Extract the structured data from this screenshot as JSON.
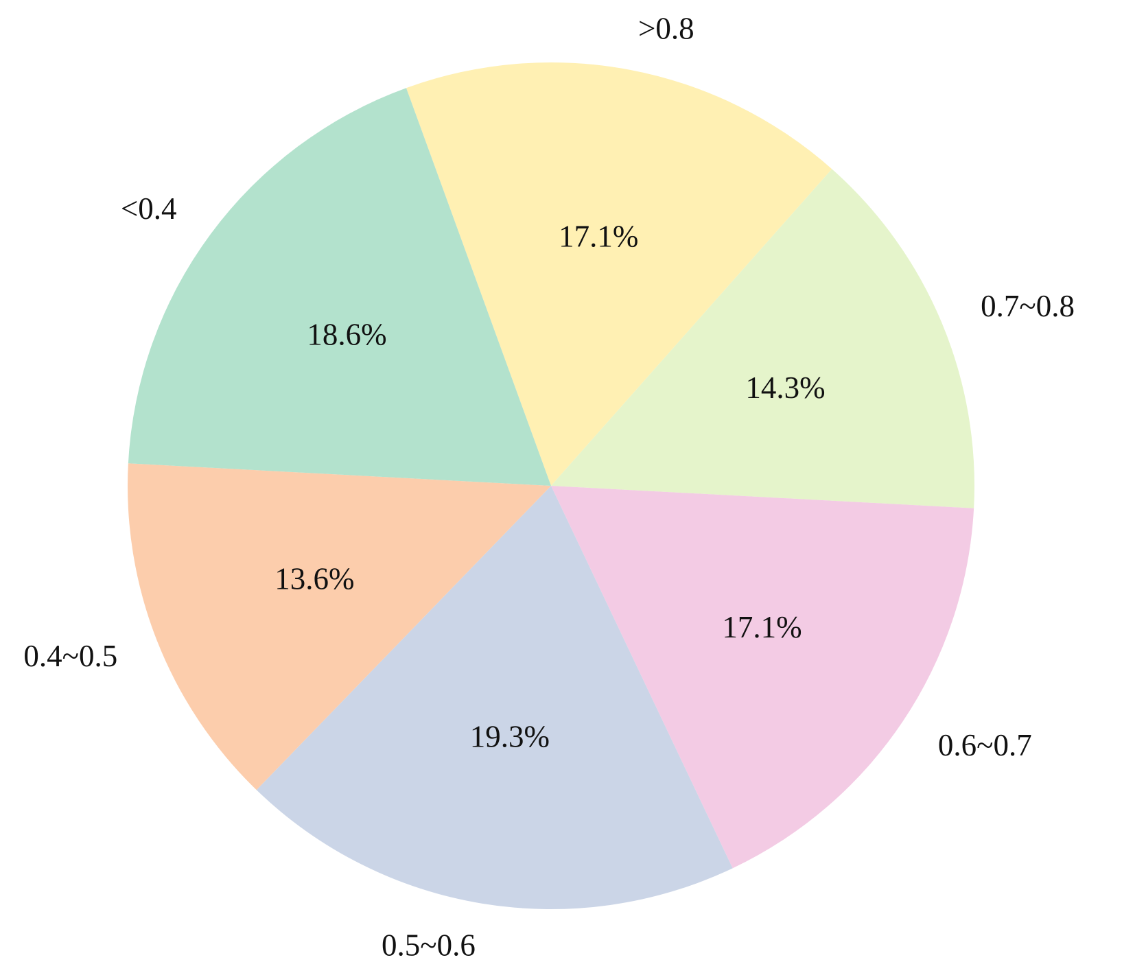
{
  "chart_data": {
    "type": "pie",
    "title": "",
    "start_angle_deg": 110,
    "direction": "clockwise",
    "slices": [
      {
        "label": ">0.8",
        "value": 17.1,
        "pct_label": "17.1%",
        "color": "#FFF0B3"
      },
      {
        "label": "0.7~0.8",
        "value": 14.3,
        "pct_label": "14.3%",
        "color": "#E5F4CB"
      },
      {
        "label": "0.6~0.7",
        "value": 17.1,
        "pct_label": "17.1%",
        "color": "#F3CBE4"
      },
      {
        "label": "0.5~0.6",
        "value": 19.3,
        "pct_label": "19.3%",
        "color": "#CBD5E7"
      },
      {
        "label": "0.4~0.5",
        "value": 13.6,
        "pct_label": "13.6%",
        "color": "#FCCDAC"
      },
      {
        "label": "<0.4",
        "value": 18.6,
        "pct_label": "18.6%",
        "color": "#B3E2CD"
      }
    ]
  }
}
